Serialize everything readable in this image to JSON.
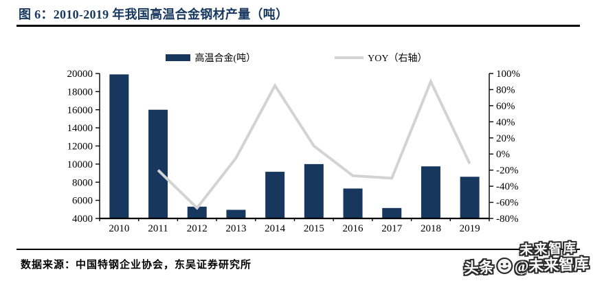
{
  "header": {
    "title": "图 6：2010-2019 年我国高温合金钢材产量（吨）"
  },
  "chart_data": {
    "type": "bar",
    "title": "2010-2019 年我国高温合金钢材产量（吨）",
    "categories": [
      "2010",
      "2011",
      "2012",
      "2013",
      "2014",
      "2015",
      "2016",
      "2017",
      "2018",
      "2019"
    ],
    "series": [
      {
        "name": "高温合金(吨）",
        "type": "bar",
        "axis": "left",
        "color": "#17375E",
        "values": [
          19900,
          16000,
          5300,
          4950,
          9150,
          10000,
          7300,
          5150,
          9750,
          8600
        ]
      },
      {
        "name": "YOY（右轴）",
        "type": "line",
        "axis": "right",
        "color": "#D3D3D3",
        "values": [
          null,
          -20,
          -67,
          -5,
          85,
          10,
          -27,
          -30,
          90,
          -12
        ]
      }
    ],
    "left_axis": {
      "min": 4000,
      "max": 20000,
      "step": 2000
    },
    "right_axis": {
      "min": -80,
      "max": 100,
      "step": 20,
      "suffix": "%"
    },
    "legend_position": "top",
    "grid": false
  },
  "footer": {
    "source": "数据来源：中国特钢企业协会，东吴证券研究所"
  },
  "watermark": {
    "ghost": "未来智库",
    "prefix": "头条",
    "handle": "@未来智库"
  }
}
